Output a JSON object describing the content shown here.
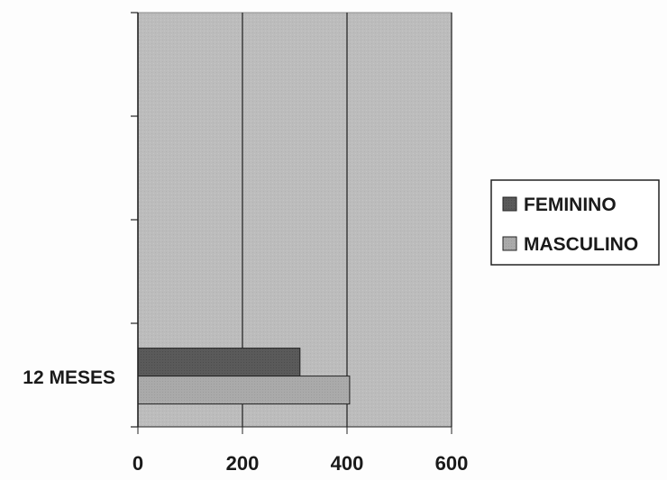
{
  "chart_data": {
    "type": "bar",
    "orientation": "horizontal",
    "categories": [
      "12 MESES"
    ],
    "series": [
      {
        "name": "FEMININO",
        "values": [
          310
        ],
        "color": "#5a5a5a"
      },
      {
        "name": "MASCULINO",
        "values": [
          405
        ],
        "color": "#a9a9a9"
      }
    ],
    "xlim": [
      0,
      600
    ],
    "xticks": [
      0,
      200,
      400,
      600
    ],
    "grid": "vertical",
    "legend": "right",
    "plot_background": "#bdbdbd"
  }
}
